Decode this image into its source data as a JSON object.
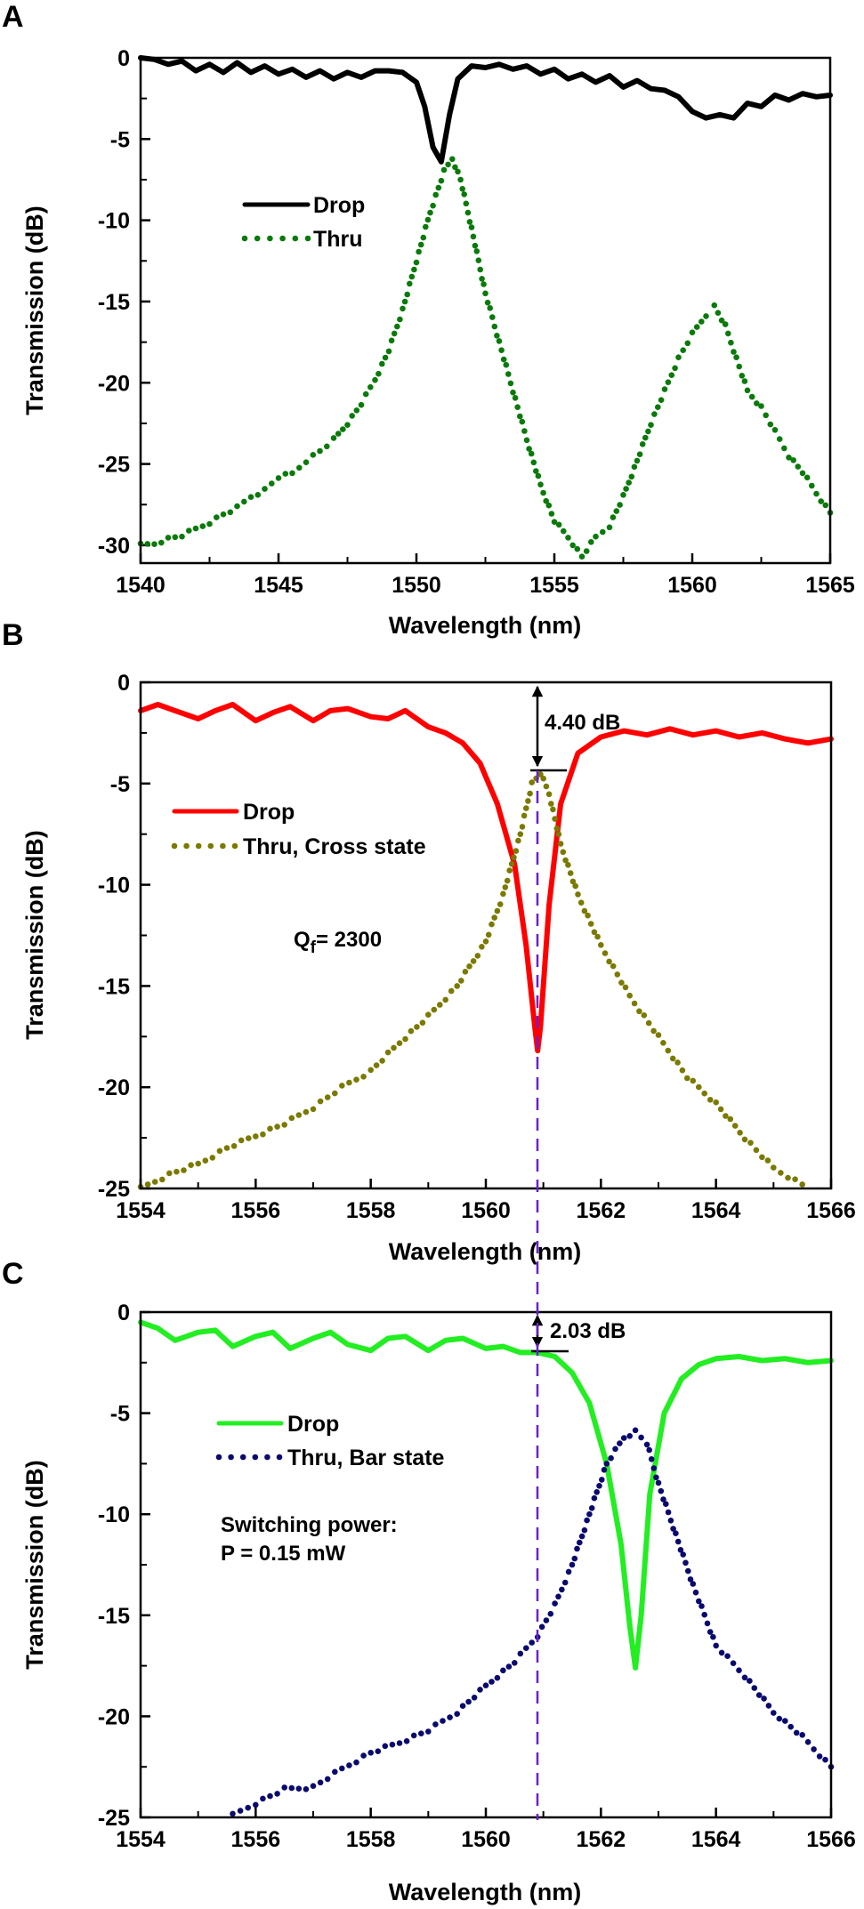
{
  "figure": {
    "panels": [
      "A",
      "B",
      "C"
    ]
  },
  "chart_data": [
    {
      "panel": "A",
      "type": "line",
      "title": "",
      "xlabel": "Wavelength (nm)",
      "ylabel": "Transmission (dB)",
      "xlim": [
        1540,
        1565
      ],
      "ylim": [
        -31.1,
        0
      ],
      "xticks": [
        1540,
        1545,
        1550,
        1555,
        1560,
        1565
      ],
      "xtick_labels": [
        "1540",
        "1545",
        "1550",
        "1555",
        "1560",
        "1565"
      ],
      "yticks": [
        0,
        -5,
        -10,
        -15,
        -20,
        -25,
        -30
      ],
      "ytick_labels": [
        "0",
        "-5",
        "-10",
        "-15",
        "-20",
        "-25",
        "-30"
      ],
      "legend": {
        "placement": "upper-left-center",
        "entries": [
          "Drop",
          "Thru"
        ]
      },
      "series": [
        {
          "name": "Drop",
          "style": "solid",
          "color": "#000000",
          "x": [
            1540,
            1540.5,
            1541,
            1541.5,
            1542,
            1542.5,
            1543,
            1543.5,
            1544,
            1544.5,
            1545,
            1545.5,
            1546,
            1546.5,
            1547,
            1547.5,
            1548,
            1548.5,
            1549,
            1549.5,
            1550,
            1550.3,
            1550.6,
            1550.9,
            1551.2,
            1551.5,
            1552,
            1552.5,
            1553,
            1553.5,
            1554,
            1554.5,
            1555,
            1555.5,
            1556,
            1556.5,
            1557,
            1557.5,
            1558,
            1558.5,
            1559,
            1559.5,
            1560,
            1560.5,
            1561,
            1561.5,
            1562,
            1562.5,
            1563,
            1563.5,
            1564,
            1564.5,
            1565
          ],
          "y": [
            0,
            -0.1,
            -0.4,
            -0.2,
            -0.8,
            -0.4,
            -0.9,
            -0.3,
            -0.9,
            -0.5,
            -1.0,
            -0.7,
            -1.2,
            -0.8,
            -1.3,
            -0.9,
            -1.2,
            -0.8,
            -0.8,
            -0.9,
            -1.5,
            -3.0,
            -5.5,
            -6.4,
            -3.5,
            -1.3,
            -0.5,
            -0.6,
            -0.4,
            -0.7,
            -0.5,
            -1.0,
            -0.7,
            -1.3,
            -1.0,
            -1.5,
            -1.1,
            -1.8,
            -1.4,
            -1.9,
            -2.0,
            -2.4,
            -3.3,
            -3.7,
            -3.5,
            -3.7,
            -2.8,
            -3.0,
            -2.3,
            -2.6,
            -2.2,
            -2.4,
            -2.3
          ]
        },
        {
          "name": "Thru",
          "style": "dotted",
          "color": "#0a7a0a",
          "x": [
            1540,
            1540.5,
            1541,
            1541.5,
            1542,
            1542.5,
            1543,
            1543.5,
            1544,
            1544.5,
            1545,
            1545.5,
            1546,
            1546.5,
            1547,
            1547.5,
            1548,
            1548.5,
            1549,
            1549.5,
            1550,
            1550.5,
            1551,
            1551.3,
            1551.6,
            1552,
            1552.5,
            1553,
            1553.5,
            1554,
            1554.5,
            1555,
            1555.5,
            1556,
            1556.5,
            1557,
            1557.5,
            1558,
            1558.5,
            1559,
            1559.5,
            1560,
            1560.5,
            1560.8,
            1561.2,
            1561.5,
            1562,
            1562.5,
            1563,
            1563.5,
            1564,
            1564.5,
            1565
          ],
          "y": [
            -30.0,
            -29.9,
            -29.6,
            -29.4,
            -29.0,
            -28.6,
            -28.1,
            -27.7,
            -27.0,
            -26.6,
            -25.8,
            -25.6,
            -24.8,
            -24.2,
            -23.5,
            -22.5,
            -21.3,
            -19.8,
            -18.0,
            -15.5,
            -12.5,
            -9.5,
            -7.0,
            -6.2,
            -7.5,
            -10.5,
            -14.5,
            -17.5,
            -20.5,
            -23.5,
            -26.3,
            -28.5,
            -29.5,
            -30.7,
            -29.5,
            -28.8,
            -27.0,
            -24.8,
            -22.5,
            -20.5,
            -18.5,
            -17.0,
            -15.8,
            -15.3,
            -16.5,
            -18.0,
            -20.5,
            -21.5,
            -23.0,
            -24.5,
            -25.5,
            -26.8,
            -28.0
          ]
        }
      ]
    },
    {
      "panel": "B",
      "type": "line",
      "title": "",
      "xlabel": "Wavelength (nm)",
      "ylabel": "Transmission (dB)",
      "xlim": [
        1554,
        1566
      ],
      "ylim": [
        -25,
        0
      ],
      "xticks": [
        1554,
        1556,
        1558,
        1560,
        1562,
        1564,
        1566
      ],
      "xtick_labels": [
        "1554",
        "1556",
        "1558",
        "1560",
        "1562",
        "1564",
        "1566"
      ],
      "yticks": [
        0,
        -5,
        -10,
        -15,
        -20,
        -25
      ],
      "ytick_labels": [
        "0",
        "-5",
        "-10",
        "-15",
        "-20",
        "-25"
      ],
      "legend": {
        "placement": "left-center",
        "entries": [
          "Drop",
          "Thru, Cross state"
        ]
      },
      "annotations": [
        {
          "text_main": "Q",
          "text_sub": "f",
          "text_rest": "= 2300"
        },
        {
          "type": "double-arrow",
          "x": 1560.9,
          "y_from": 0,
          "y_to": -4.4,
          "label": "4.40 dB"
        }
      ],
      "marker_line": {
        "x": 1560.9,
        "style": "dashed",
        "color": "#6a1fd0"
      },
      "series": [
        {
          "name": "Drop",
          "style": "solid",
          "color": "#ff0000",
          "x": [
            1554,
            1554.3,
            1554.6,
            1555,
            1555.3,
            1555.6,
            1556,
            1556.3,
            1556.6,
            1557,
            1557.3,
            1557.6,
            1558,
            1558.3,
            1558.6,
            1559,
            1559.3,
            1559.6,
            1559.9,
            1560.2,
            1560.5,
            1560.7,
            1560.85,
            1560.9,
            1560.95,
            1561.1,
            1561.3,
            1561.6,
            1562,
            1562.4,
            1562.8,
            1563.2,
            1563.6,
            1564,
            1564.4,
            1564.8,
            1565.2,
            1565.6,
            1566
          ],
          "y": [
            -1.4,
            -1.1,
            -1.4,
            -1.8,
            -1.4,
            -1.1,
            -1.9,
            -1.5,
            -1.2,
            -1.9,
            -1.4,
            -1.3,
            -1.7,
            -1.8,
            -1.4,
            -2.2,
            -2.5,
            -3.0,
            -4.0,
            -6.0,
            -9.0,
            -13.0,
            -17.0,
            -18.2,
            -17.0,
            -11.0,
            -6.0,
            -3.5,
            -2.7,
            -2.4,
            -2.6,
            -2.3,
            -2.6,
            -2.4,
            -2.7,
            -2.5,
            -2.8,
            -3.0,
            -2.8
          ]
        },
        {
          "name": "Thru, Cross state",
          "style": "dotted",
          "color": "#7a7a00",
          "x": [
            1554,
            1554.5,
            1555,
            1555.5,
            1556,
            1556.5,
            1557,
            1557.5,
            1558,
            1558.5,
            1559,
            1559.5,
            1560,
            1560.3,
            1560.6,
            1560.8,
            1560.95,
            1561.1,
            1561.3,
            1561.6,
            1562,
            1562.5,
            1563,
            1563.5,
            1564,
            1564.5,
            1565,
            1565.5
          ],
          "y": [
            -25.0,
            -24.3,
            -23.8,
            -23.0,
            -22.4,
            -21.8,
            -21.0,
            -20.0,
            -19.2,
            -17.8,
            -16.5,
            -15.0,
            -12.8,
            -10.5,
            -7.5,
            -5.0,
            -4.5,
            -5.5,
            -8.0,
            -10.5,
            -13.0,
            -15.5,
            -17.5,
            -19.5,
            -20.8,
            -22.5,
            -24.0,
            -24.8
          ]
        }
      ]
    },
    {
      "panel": "C",
      "type": "line",
      "title": "",
      "xlabel": "Wavelength (nm)",
      "ylabel": "Transmission (dB)",
      "xlim": [
        1554,
        1566
      ],
      "ylim": [
        -25,
        0
      ],
      "xticks": [
        1554,
        1556,
        1558,
        1560,
        1562,
        1564,
        1566
      ],
      "xtick_labels": [
        "1554",
        "1556",
        "1558",
        "1560",
        "1562",
        "1564",
        "1566"
      ],
      "yticks": [
        0,
        -5,
        -10,
        -15,
        -20,
        -25
      ],
      "ytick_labels": [
        "0",
        "-5",
        "-10",
        "-15",
        "-20",
        "-25"
      ],
      "legend": {
        "placement": "left-center",
        "entries": [
          "Drop",
          "Thru, Bar state"
        ]
      },
      "annotations": [
        {
          "line1": "Switching power:",
          "line2": "P = 0.15 mW"
        },
        {
          "type": "double-arrow",
          "x": 1560.9,
          "y_from": 0,
          "y_to": -2.03,
          "label": "2.03 dB"
        }
      ],
      "marker_line": {
        "x": 1560.9,
        "style": "dashed",
        "color": "#6a1fd0"
      },
      "series": [
        {
          "name": "Drop",
          "style": "solid",
          "color": "#22ee22",
          "x": [
            1554,
            1554.3,
            1554.6,
            1555,
            1555.3,
            1555.6,
            1556,
            1556.3,
            1556.6,
            1557,
            1557.3,
            1557.6,
            1558,
            1558.3,
            1558.6,
            1559,
            1559.3,
            1559.6,
            1560,
            1560.3,
            1560.6,
            1560.9,
            1561.2,
            1561.5,
            1561.8,
            1562.1,
            1562.35,
            1562.5,
            1562.6,
            1562.7,
            1562.85,
            1563.1,
            1563.4,
            1563.7,
            1564,
            1564.4,
            1564.8,
            1565.2,
            1565.6,
            1566
          ],
          "y": [
            -0.5,
            -0.8,
            -1.4,
            -1.0,
            -0.9,
            -1.7,
            -1.2,
            -1.0,
            -1.8,
            -1.3,
            -1.0,
            -1.6,
            -1.9,
            -1.3,
            -1.2,
            -1.9,
            -1.4,
            -1.3,
            -1.8,
            -1.7,
            -2.0,
            -2.0,
            -2.2,
            -3.0,
            -4.5,
            -7.5,
            -11.5,
            -15.5,
            -17.6,
            -15.0,
            -9.0,
            -5.0,
            -3.3,
            -2.6,
            -2.3,
            -2.2,
            -2.4,
            -2.3,
            -2.5,
            -2.4
          ]
        },
        {
          "name": "Thru, Bar state",
          "style": "dotted",
          "color": "#0a0a6e",
          "x": [
            1555.6,
            1556,
            1556.5,
            1557,
            1557.5,
            1558,
            1558.5,
            1559,
            1559.5,
            1560,
            1560.5,
            1560.9,
            1561.2,
            1561.5,
            1561.8,
            1562.1,
            1562.4,
            1562.6,
            1562.8,
            1563,
            1563.3,
            1563.6,
            1564,
            1564.5,
            1565,
            1565.5,
            1566
          ],
          "y": [
            -24.9,
            -24.3,
            -23.6,
            -23.5,
            -22.6,
            -21.8,
            -21.3,
            -20.7,
            -19.8,
            -18.5,
            -17.3,
            -16.0,
            -14.5,
            -12.5,
            -10.0,
            -7.5,
            -6.2,
            -5.9,
            -6.5,
            -8.5,
            -11.0,
            -13.5,
            -16.5,
            -18.0,
            -19.8,
            -21.0,
            -22.5
          ]
        }
      ]
    }
  ]
}
